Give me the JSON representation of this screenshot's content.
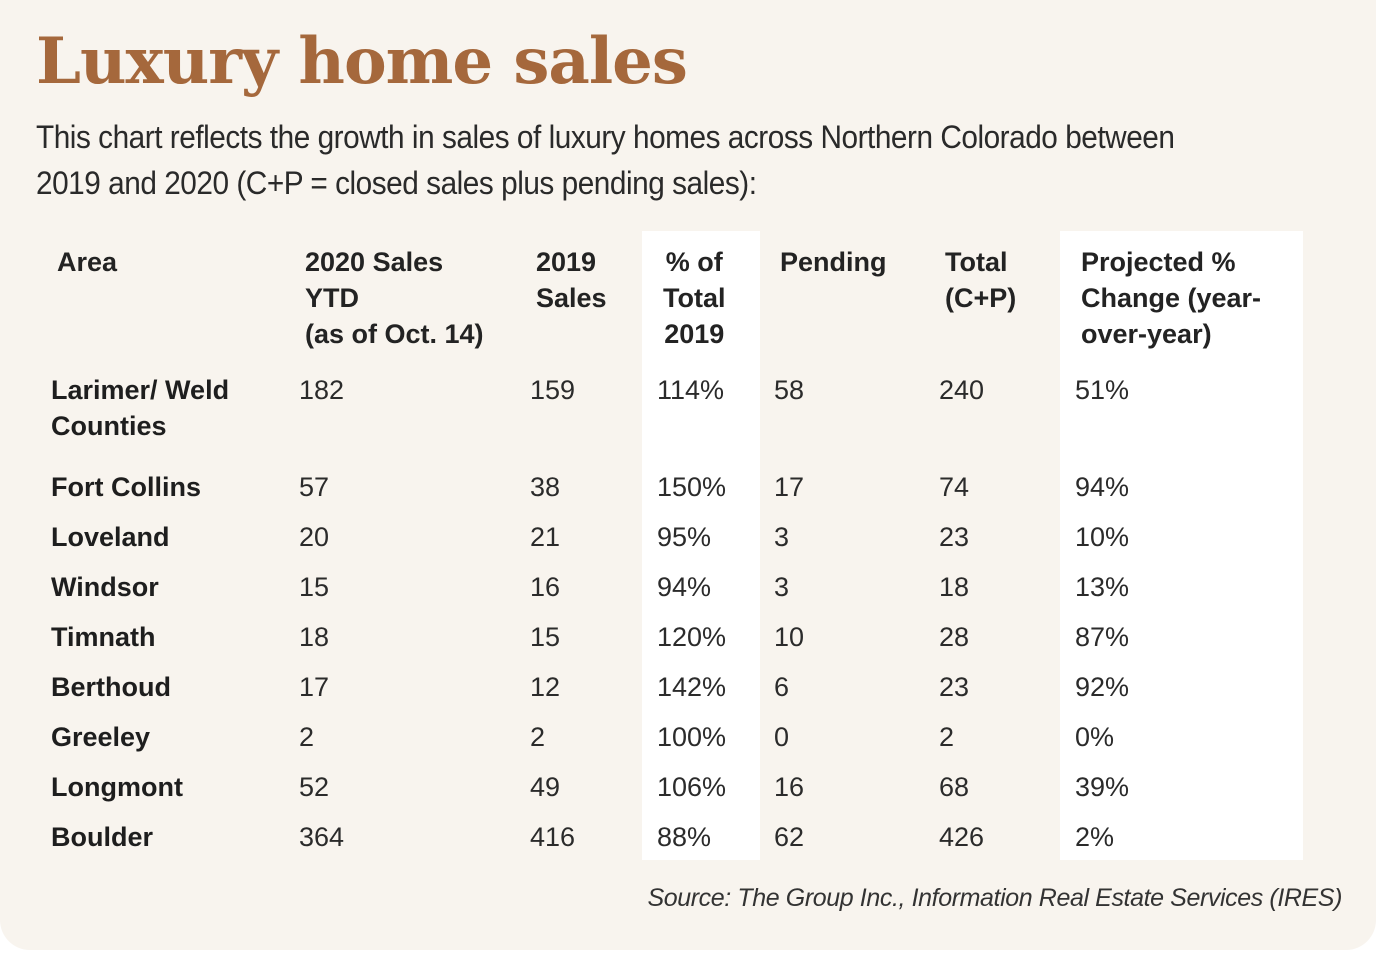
{
  "title": "Luxury home sales",
  "subtitle": "This chart reflects the growth in sales of luxury homes across Northern Colorado between 2019 and 2020 (C+P = closed sales plus pending sales):",
  "source": "Source: The Group Inc., Information Real Estate Services (IRES)",
  "colors": {
    "title": "#a5683c",
    "background": "#f8f4ee",
    "highlight_column": "#ffffff"
  },
  "chart_data": {
    "type": "table",
    "columns": [
      "Area",
      "2020 Sales YTD (as of Oct. 14)",
      "2019 Sales",
      "% of Total 2019",
      "Pending",
      "Total (C+P)",
      "Projected % Change (year-over-year)"
    ],
    "column_lines": [
      [
        "Area"
      ],
      [
        "2020 Sales",
        "YTD",
        "(as of Oct. 14)"
      ],
      [
        "2019",
        "Sales"
      ],
      [
        "% of",
        "Total",
        "2019"
      ],
      [
        "Pending"
      ],
      [
        "Total",
        "(C+P)"
      ],
      [
        "Projected %",
        "Change (year-",
        "over-year)"
      ]
    ],
    "rows": [
      [
        "Larimer/ Weld Counties",
        "182",
        "159",
        "114%",
        "58",
        "240",
        "51%"
      ],
      [
        "Fort Collins",
        "57",
        "38",
        "150%",
        "17",
        "74",
        "94%"
      ],
      [
        "Loveland",
        "20",
        "21",
        "95%",
        "3",
        "23",
        "10%"
      ],
      [
        "Windsor",
        "15",
        "16",
        "94%",
        "3",
        "18",
        "13%"
      ],
      [
        "Timnath",
        "18",
        "15",
        "120%",
        "10",
        "28",
        "87%"
      ],
      [
        "Berthoud",
        "17",
        "12",
        "142%",
        "6",
        "23",
        "92%"
      ],
      [
        "Greeley",
        "2",
        "2",
        "100%",
        "0",
        "2",
        "0%"
      ],
      [
        "Longmont",
        "52",
        "49",
        "106%",
        "16",
        "68",
        "39%"
      ],
      [
        "Boulder",
        "364",
        "416",
        "88%",
        "62",
        "426",
        "2%"
      ]
    ]
  }
}
